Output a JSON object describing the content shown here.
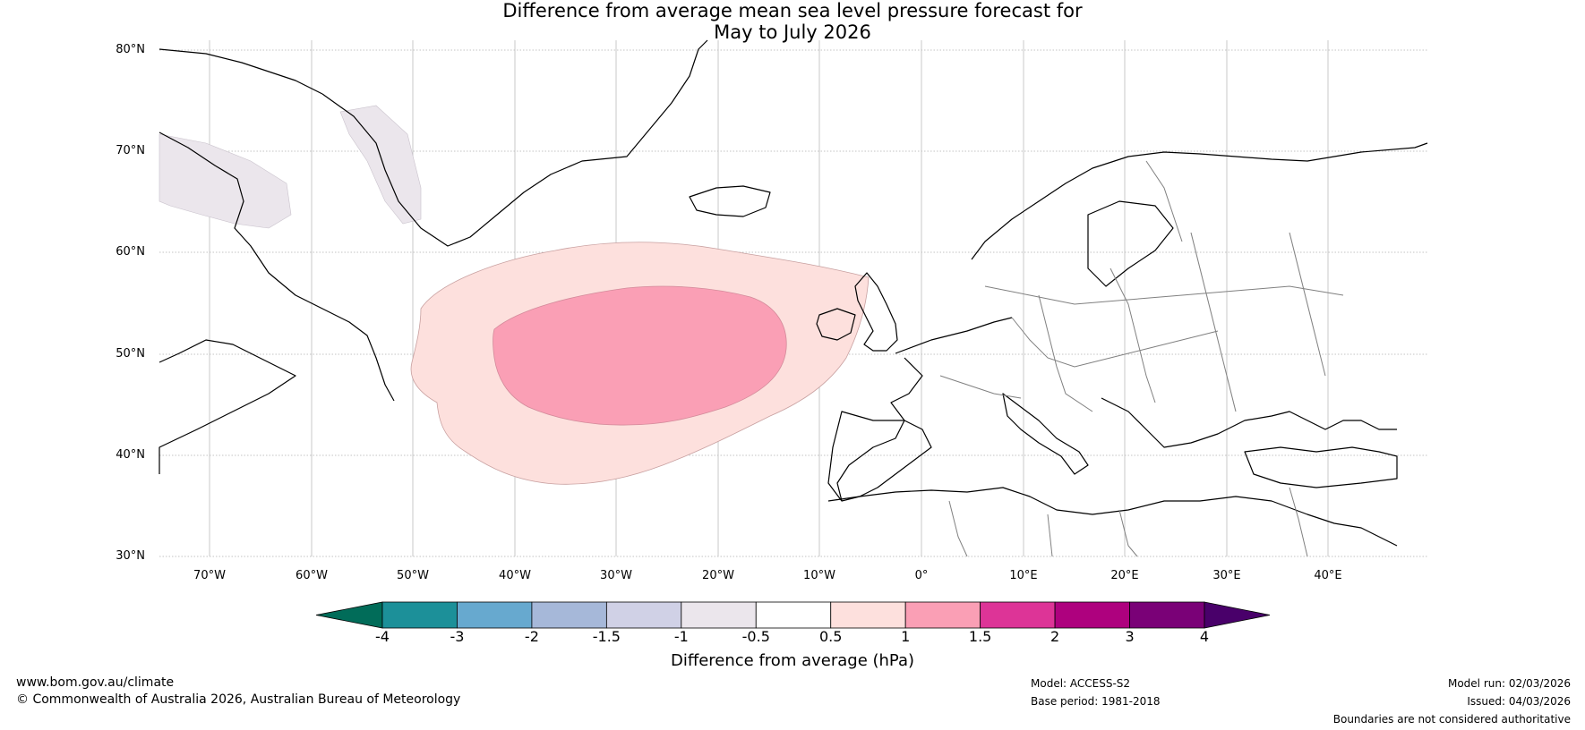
{
  "title": {
    "line1": "Difference from average mean sea level pressure forecast for",
    "line2": "May to July 2026"
  },
  "map": {
    "lat_labels": [
      "80°N",
      "70°N",
      "60°N",
      "50°N",
      "40°N",
      "30°N"
    ],
    "lon_labels": [
      "70°W",
      "60°W",
      "50°W",
      "40°W",
      "30°W",
      "20°W",
      "10°W",
      "0°",
      "10°E",
      "20°E",
      "30°E",
      "40°E"
    ],
    "extent": {
      "lon_min": -75,
      "lon_max": 50,
      "lat_min": 30,
      "lat_max": 81
    },
    "anomaly_regions": [
      {
        "name": "North Atlantic positive anomaly",
        "range_hPa": "0.5 to 1",
        "color": "#fde0dd"
      },
      {
        "name": "North Atlantic core",
        "range_hPa": "1 to 1.5",
        "color": "#fa9fb5"
      },
      {
        "name": "Labrador / Greenland weak negative",
        "range_hPa": "-1 to -0.5",
        "color": "#ebe6ec"
      }
    ]
  },
  "colorbar": {
    "title": "Difference from average (hPa)",
    "ticks": [
      "-4",
      "-3",
      "-2",
      "-1.5",
      "-1",
      "-0.5",
      "0.5",
      "1",
      "1.5",
      "2",
      "3",
      "4"
    ],
    "colors": [
      "#016c59",
      "#1c9099",
      "#67a9cf",
      "#a6b8d9",
      "#d0d1e6",
      "#ebe6ec",
      "#ffffff",
      "#fde0dd",
      "#fa9fb5",
      "#dd3497",
      "#ae017e",
      "#7a0177",
      "#49006a"
    ]
  },
  "footer": {
    "website": "www.bom.gov.au/climate",
    "copyright": "© Commonwealth of Australia 2026, Australian Bureau of Meteorology",
    "model": "Model: ACCESS-S2",
    "base_period": "Base period: 1981-2018",
    "model_run": "Model run: 02/03/2026",
    "issued": "Issued: 04/03/2026",
    "disclaimer": "Boundaries are not considered authoritative"
  }
}
